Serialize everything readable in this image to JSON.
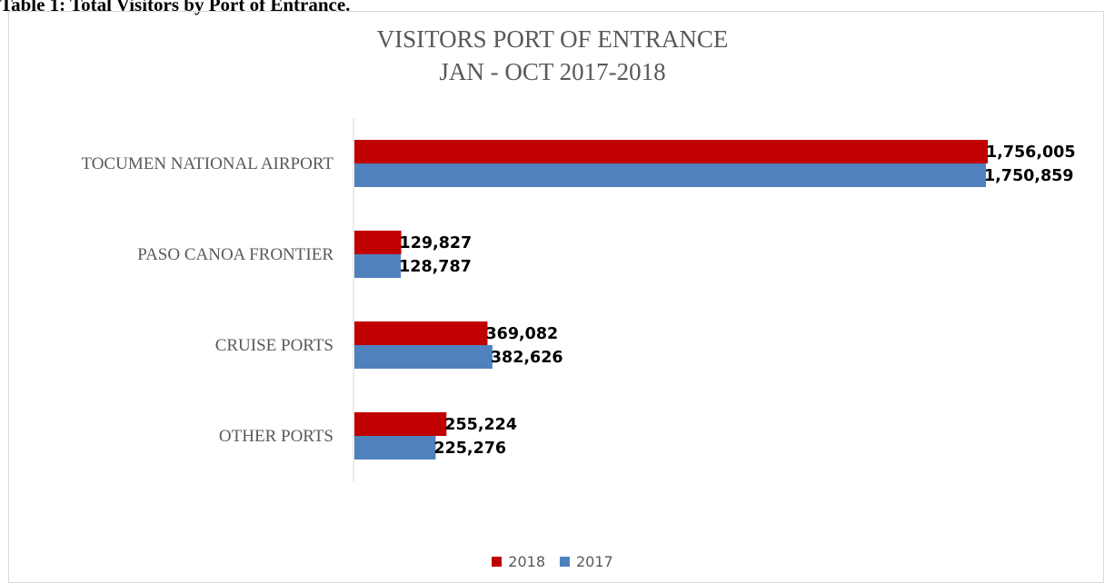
{
  "heading": "Table 1: Total Visitors by Port of Entrance.",
  "chart_data": {
    "type": "bar",
    "orientation": "horizontal",
    "title_line1": "VISITORS PORT OF ENTRANCE",
    "title_line2": "JAN - OCT 2017-2018",
    "categories": [
      "TOCUMEN NATIONAL AIRPORT",
      "PASO CANOA FRONTIER",
      "CRUISE PORTS",
      "OTHER PORTS"
    ],
    "series": [
      {
        "name": "2018",
        "color": "#c00000",
        "values": [
          1756005,
          129827,
          369082,
          255224
        ],
        "labels": [
          "1,756,005",
          "129,827",
          "369,082",
          "255,224"
        ]
      },
      {
        "name": "2017",
        "color": "#4f81bd",
        "values": [
          1750859,
          128787,
          382626,
          225276
        ],
        "labels": [
          "1,750,859",
          "128,787",
          "382,626",
          "225,276"
        ]
      }
    ],
    "xlim": [
      0,
      1756005
    ],
    "grid": false,
    "legend": "bottom"
  }
}
